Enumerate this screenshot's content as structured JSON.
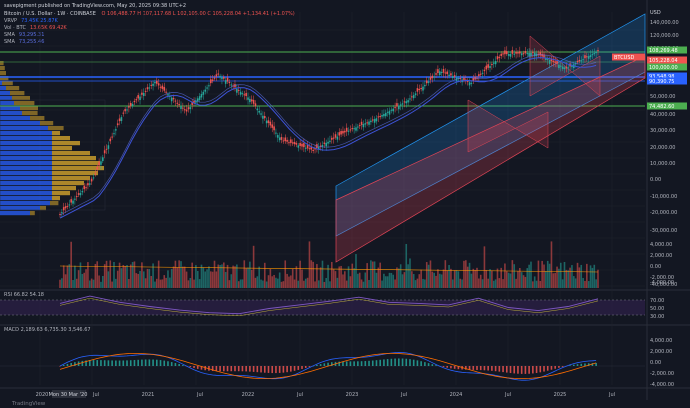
{
  "header": "savepigment published on TradingView.com, May 20, 2025 09:38 UTC+2",
  "legend": {
    "title": "Bitcoin / U.S. Dollar · 1W · COINBASE",
    "ohlc": "O 106,488.77 H 107,117.68 L 102,105.00 C 105,228.04 +1,134.41 (+1.07%)",
    "vrvp_name": "VRVP",
    "vrvp_values": "73.45K 25.87K",
    "vol_name": "Vol · BTC",
    "vol_values": "13.65K 69.42K",
    "sma1_name": "SMA",
    "sma1_value": "93,295.31",
    "sma2_name": "SMA",
    "sma2_value": "73,255.46",
    "rsi_label": "RSI 66.82 54.18",
    "macd_label": "MACD 2,189.63 6,735.30 3,546.67",
    "watermark": "TradingView"
  },
  "colors": {
    "bg": "#131722",
    "up": "#26a69a",
    "down": "#ef5350",
    "sma_blue": "#3d53d8",
    "sma_orange": "#ff9800",
    "channel_blue": "#2196f3",
    "channel_red": "#e04556",
    "hline_green": "#4caf50",
    "hline_blue": "#2962ff",
    "vp_blue": "#2962ff",
    "vp_gold": "#c89b2b",
    "rsi_line": "#7e57c2",
    "rsi_band": "#2a1f45",
    "macd_pos": "#26a69a",
    "macd_neg": "#ef5350"
  },
  "chart_data": [
    {
      "type": "line",
      "title": "Bitcoin / U.S. Dollar · 1W · COINBASE",
      "y_scale": "log",
      "ylabel": "USD",
      "ylim": [
        -40000,
        140000
      ],
      "x": [
        "2020-03",
        "2020-07",
        "2021-01",
        "2021-04",
        "2021-07",
        "2021-11",
        "2022-01",
        "2022-06",
        "2022-11",
        "2023-01",
        "2023-07",
        "2024-01",
        "2024-03",
        "2024-07",
        "2024-12",
        "2025-01",
        "2025-04",
        "2025-05"
      ],
      "series": [
        {
          "values": [
            5000,
            9200,
            33000,
            59000,
            34000,
            68000,
            43000,
            20000,
            16500,
            23000,
            30000,
            42000,
            72000,
            58000,
            99000,
            102000,
            76000,
            105228
          ]
        }
      ],
      "y_ticks": [
        "140,000.00",
        "120,000.00",
        "100,000.00",
        "80,000.00",
        "60,000.00",
        "50,000.00",
        "40,000.00",
        "30,000.00",
        "20,000.00",
        "10,000.00",
        "0.00",
        "-10,000.00",
        "-20,000.00",
        "-30,000.00",
        "-40,000.00"
      ],
      "x_ticks": [
        "2020",
        "Mon 30 Mar '20",
        "Jul",
        "2021",
        "Jul",
        "2022",
        "Jul",
        "2023",
        "Jul",
        "2024",
        "Jul",
        "2025",
        "Jul"
      ],
      "price_tags": [
        "108,269.48",
        "105,228.04",
        "BTCUSD",
        "100,000.00",
        "93,548.98",
        "90,390.75",
        "74,482.60"
      ]
    },
    {
      "type": "bar",
      "title": "Vol · BTC",
      "y_ticks": [
        "4,000.00",
        "2,000.00",
        "0.00",
        "-2,000.00",
        "-4,000.00"
      ]
    },
    {
      "type": "line",
      "title": "RSI",
      "series": [
        {
          "values": [
            58,
            72,
            60,
            52,
            45,
            40,
            38,
            48,
            55,
            62,
            70,
            60,
            58,
            55,
            68,
            50,
            44,
            52,
            66.82
          ]
        }
      ],
      "y_ticks": [
        "70.00",
        "50.00",
        "30.00"
      ]
    }
  ]
}
